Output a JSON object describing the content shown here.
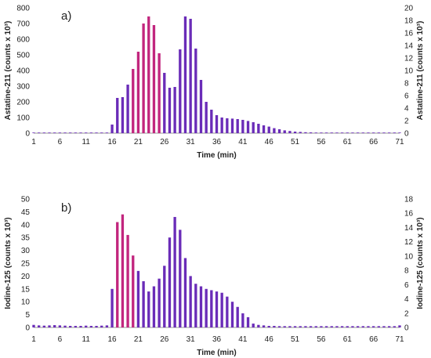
{
  "chart_data": [
    {
      "type": "bar",
      "panel_label": "a)",
      "xlabel": "Time (min)",
      "ylabel": "Astatine-211 (counts x 10³)",
      "ylabel_right": "Astatine-211 (counts x 10³)",
      "x": [
        1,
        2,
        3,
        4,
        5,
        6,
        7,
        8,
        9,
        10,
        11,
        12,
        13,
        14,
        15,
        16,
        17,
        18,
        19,
        20,
        21,
        22,
        23,
        24,
        25,
        26,
        27,
        28,
        29,
        30,
        31,
        32,
        33,
        34,
        35,
        36,
        37,
        38,
        39,
        40,
        41,
        42,
        43,
        44,
        45,
        46,
        47,
        48,
        49,
        50,
        51,
        52,
        53,
        54,
        55,
        56,
        57,
        58,
        59,
        60,
        61,
        62,
        63,
        64,
        65,
        66,
        67,
        68,
        69,
        70,
        71
      ],
      "values": [
        0,
        0,
        0,
        0,
        0,
        0,
        0,
        0,
        0,
        0,
        0,
        0,
        0,
        0,
        0,
        55,
        225,
        230,
        310,
        410,
        520,
        700,
        745,
        690,
        510,
        385,
        290,
        295,
        535,
        745,
        730,
        540,
        340,
        200,
        150,
        115,
        100,
        95,
        93,
        90,
        85,
        78,
        70,
        60,
        50,
        42,
        32,
        25,
        18,
        14,
        10,
        8,
        6,
        5,
        4,
        3,
        2,
        2,
        1,
        1,
        1,
        1,
        1,
        1,
        1,
        1,
        1,
        1,
        1,
        1,
        1
      ],
      "xticks": [
        "1",
        "6",
        "11",
        "16",
        "21",
        "26",
        "31",
        "36",
        "41",
        "46",
        "51",
        "56",
        "61",
        "66",
        "71"
      ],
      "yticks_left": [
        "0",
        "100",
        "200",
        "300",
        "400",
        "500",
        "600",
        "700",
        "800"
      ],
      "yticks_right": [
        "0",
        "2",
        "4",
        "6",
        "8",
        "10",
        "12",
        "14",
        "16",
        "18",
        "20"
      ],
      "ylim": [
        0,
        800
      ],
      "ylim_right": [
        0,
        20
      ],
      "bar_color": "#6A2CB8",
      "bar_highlight_color": "#C2267E"
    },
    {
      "type": "bar",
      "panel_label": "b)",
      "xlabel": "Time (min)",
      "ylabel": "Iodine-125 (counts x 10³)",
      "ylabel_right": "Iodine-125 (counts x 10³)",
      "x": [
        1,
        2,
        3,
        4,
        5,
        6,
        7,
        8,
        9,
        10,
        11,
        12,
        13,
        14,
        15,
        16,
        17,
        18,
        19,
        20,
        21,
        22,
        23,
        24,
        25,
        26,
        27,
        28,
        29,
        30,
        31,
        32,
        33,
        34,
        35,
        36,
        37,
        38,
        39,
        40,
        41,
        42,
        43,
        44,
        45,
        46,
        47,
        48,
        49,
        50,
        51,
        52,
        53,
        54,
        55,
        56,
        57,
        58,
        59,
        60,
        61,
        62,
        63,
        64,
        65,
        66,
        67,
        68,
        69,
        70,
        71
      ],
      "values": [
        1,
        0.8,
        0.7,
        0.8,
        0.9,
        0.8,
        0.7,
        0.6,
        0.6,
        0.6,
        0.7,
        0.6,
        0.6,
        0.7,
        0.8,
        15,
        41,
        44,
        36,
        28,
        22,
        18,
        14,
        16,
        19,
        24,
        35,
        43,
        38,
        27,
        20,
        17,
        16,
        15,
        14.5,
        14,
        13.5,
        12,
        10,
        8,
        5.5,
        4,
        1.5,
        1,
        0.8,
        0.6,
        0.6,
        0.5,
        0.5,
        0.5,
        0.5,
        0.5,
        0.5,
        0.5,
        0.5,
        0.5,
        0.5,
        0.5,
        0.5,
        0.5,
        0.5,
        0.5,
        0.5,
        0.5,
        0.5,
        0.5,
        0.5,
        0.5,
        0.5,
        0.5,
        0.8
      ],
      "xticks": [
        "1",
        "6",
        "11",
        "16",
        "21",
        "26",
        "31",
        "36",
        "41",
        "46",
        "51",
        "56",
        "61",
        "66",
        "71"
      ],
      "yticks_left": [
        "0",
        "5",
        "10",
        "15",
        "20",
        "25",
        "30",
        "35",
        "40",
        "45",
        "50"
      ],
      "yticks_right": [
        "0",
        "2",
        "4",
        "6",
        "8",
        "10",
        "12",
        "14",
        "16",
        "18"
      ],
      "ylim": [
        0,
        50
      ],
      "ylim_right": [
        0,
        18
      ],
      "bar_color": "#6A2CB8",
      "bar_highlight_color": "#C2267E"
    }
  ]
}
